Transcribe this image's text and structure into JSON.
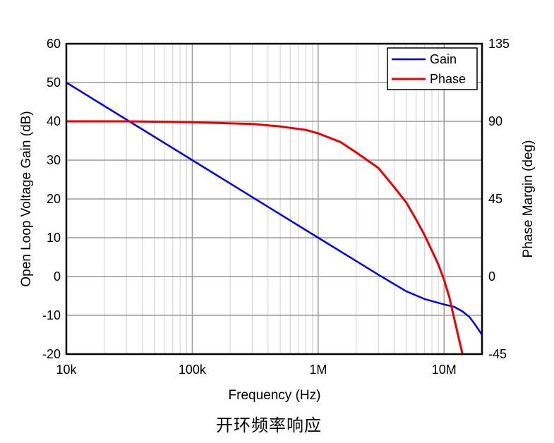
{
  "chart_data": {
    "type": "line",
    "x_scale": "log",
    "xlim": [
      10000,
      20000000
    ],
    "ylim_left": [
      -20,
      60
    ],
    "ylim_right": [
      -45,
      135
    ],
    "xlabel": "Frequency (Hz)",
    "ylabel_left": "Open Loop Voltage Gain (dB)",
    "ylabel_right": "Phase Margin (deg)",
    "x_ticks": [
      {
        "value": 10000,
        "label": "10k"
      },
      {
        "value": 100000,
        "label": "100k"
      },
      {
        "value": 1000000,
        "label": "1M"
      },
      {
        "value": 10000000,
        "label": "10M"
      }
    ],
    "y_ticks_left": [
      {
        "value": 60,
        "label": "60"
      },
      {
        "value": 50,
        "label": "50"
      },
      {
        "value": 40,
        "label": "40"
      },
      {
        "value": 30,
        "label": "30"
      },
      {
        "value": 20,
        "label": "20"
      },
      {
        "value": 10,
        "label": "10"
      },
      {
        "value": 0,
        "label": "0"
      },
      {
        "value": -10,
        "label": "-10"
      },
      {
        "value": -20,
        "label": "-20"
      }
    ],
    "y_ticks_right": [
      {
        "value": 135,
        "label": "135"
      },
      {
        "value": 90,
        "label": "90"
      },
      {
        "value": 45,
        "label": "45"
      },
      {
        "value": 0,
        "label": "0"
      },
      {
        "value": -45,
        "label": "-45"
      }
    ],
    "grid": true,
    "legend_position": "top-right",
    "series": [
      {
        "name": "Gain",
        "axis": "left",
        "color": "#0000ff",
        "x": [
          10000,
          100000,
          1000000,
          3000000,
          5000000,
          7000000,
          10000000,
          12000000,
          14000000,
          16000000,
          18000000,
          20000000
        ],
        "y": [
          50,
          30,
          10,
          0.5,
          -3.8,
          -5.8,
          -7.2,
          -7.8,
          -9.0,
          -10.5,
          -12.8,
          -15
        ]
      },
      {
        "name": "Phase",
        "axis": "right",
        "color": "#ee0000",
        "x": [
          10000,
          30000,
          100000,
          300000,
          500000,
          800000,
          1000000,
          1500000,
          2000000,
          3000000,
          4000000,
          5000000,
          6000000,
          7000000,
          8000000,
          9000000,
          10000000,
          11000000,
          12000000,
          13000000,
          14000000
        ],
        "y": [
          90,
          90,
          89.5,
          88.5,
          87,
          85,
          83,
          78,
          72,
          63,
          52,
          43,
          33,
          24,
          15,
          7,
          -2,
          -12,
          -24,
          -35,
          -45
        ]
      }
    ]
  },
  "caption": "开环频率响应"
}
